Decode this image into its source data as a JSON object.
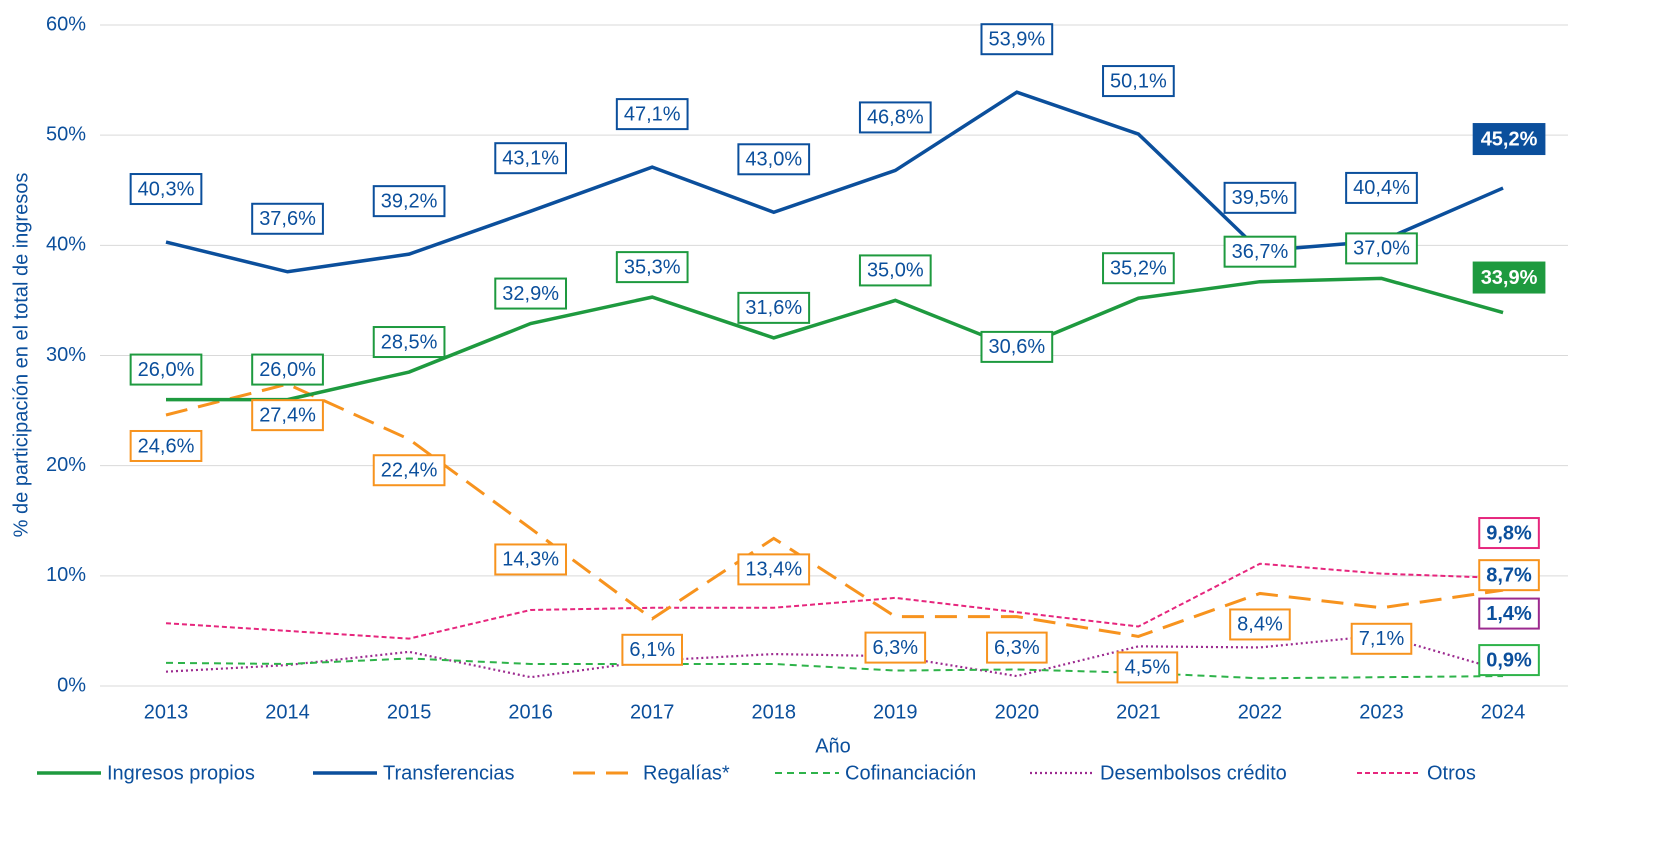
{
  "chart_data": {
    "type": "line",
    "y_label": "% de participación en el total de ingresos",
    "x_label": "Año",
    "categories": [
      "2013",
      "2014",
      "2015",
      "2016",
      "2017",
      "2018",
      "2019",
      "2020",
      "2021",
      "2022",
      "2023",
      "2024"
    ],
    "ylim": [
      0,
      60
    ],
    "yticks": [
      {
        "value": 0,
        "label": "0%"
      },
      {
        "value": 10,
        "label": "10%"
      },
      {
        "value": 20,
        "label": "20%"
      },
      {
        "value": 30,
        "label": "30%"
      },
      {
        "value": 40,
        "label": "40%"
      },
      {
        "value": 50,
        "label": "50%"
      },
      {
        "value": 60,
        "label": "60%"
      }
    ],
    "grid": true,
    "legend": "bottom",
    "series": [
      {
        "name": "Ingresos propios",
        "color": "#1e9a3f",
        "style": "solid",
        "values": [
          26.0,
          26.0,
          28.5,
          32.9,
          35.3,
          31.6,
          35.0,
          30.6,
          35.2,
          36.7,
          37.0,
          33.9
        ],
        "value_labels": [
          "26,0%",
          "26,0%",
          "28,5%",
          "32,9%",
          "35,3%",
          "31,6%",
          "35,0%",
          "30,6%",
          "35,2%",
          "36,7%",
          "37,0%",
          "33,9%"
        ]
      },
      {
        "name": "Transferencias",
        "color": "#0b4f9c",
        "style": "solid",
        "values": [
          40.3,
          37.6,
          39.2,
          43.1,
          47.1,
          43.0,
          46.8,
          53.9,
          50.1,
          39.5,
          40.4,
          45.2
        ],
        "value_labels": [
          "40,3%",
          "37,6%",
          "39,2%",
          "43,1%",
          "47,1%",
          "43,0%",
          "46,8%",
          "53,9%",
          "50,1%",
          "39,5%",
          "40,4%",
          "45,2%"
        ]
      },
      {
        "name": "Regalías*",
        "color": "#f7931e",
        "style": "longdash",
        "values": [
          24.6,
          27.4,
          22.4,
          14.3,
          6.1,
          13.4,
          6.3,
          6.3,
          4.5,
          8.4,
          7.1,
          8.7
        ],
        "value_labels": [
          "24,6%",
          "27,4%",
          "22,4%",
          "14,3%",
          "6,1%",
          "13,4%",
          "6,3%",
          "6,3%",
          "4,5%",
          "8,4%",
          "7,1%",
          "8,7%"
        ]
      },
      {
        "name": "Cofinanciación",
        "color": "#2eb34a",
        "style": "dash",
        "values": [
          2.1,
          2.0,
          2.5,
          2.0,
          2.0,
          2.0,
          1.4,
          1.5,
          1.2,
          0.7,
          0.8,
          0.9
        ],
        "value_labels": [
          null,
          null,
          null,
          null,
          null,
          null,
          null,
          null,
          null,
          null,
          null,
          "0,9%"
        ]
      },
      {
        "name": "Desembolsos crédito",
        "color": "#9c2a8f",
        "style": "dot",
        "values": [
          1.3,
          1.9,
          3.1,
          0.8,
          2.3,
          2.9,
          2.7,
          0.9,
          3.6,
          3.5,
          4.6,
          1.4
        ],
        "value_labels": [
          null,
          null,
          null,
          null,
          null,
          null,
          null,
          null,
          null,
          null,
          null,
          "1,4%"
        ]
      },
      {
        "name": "Otros",
        "color": "#e6267d",
        "style": "shortdash",
        "values": [
          5.7,
          5.0,
          4.3,
          6.9,
          7.1,
          7.1,
          8.0,
          6.7,
          5.4,
          11.1,
          10.2,
          9.8
        ],
        "value_labels": [
          null,
          null,
          null,
          null,
          null,
          null,
          null,
          null,
          null,
          null,
          null,
          "9,8%"
        ]
      }
    ]
  }
}
